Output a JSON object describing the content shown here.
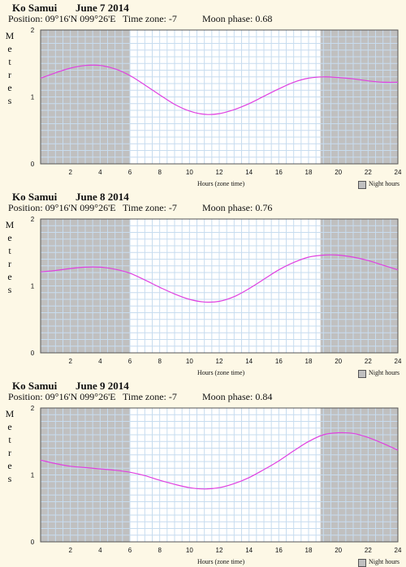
{
  "night_label": "Night hours",
  "x_title": "Hours (zone time)",
  "y_title_letters": [
    "M",
    "e",
    "t",
    "r",
    "e",
    "s"
  ],
  "colors": {
    "night": "#c0c0c0",
    "grid": "#c7dcef",
    "curve": "#e040e0",
    "plot_bg": "#ffffff",
    "page_bg": "#fdf8e6"
  },
  "chart_data": [
    {
      "type": "line",
      "place": "Ko Samui",
      "date": "June 7 2014",
      "position_label": "Position: 09°16'N 099°26'E",
      "timezone_label": "Time zone: -7",
      "moon_label": "Moon phase: 0.68",
      "xlabel": "Hours (zone time)",
      "ylabel": "Metres",
      "xlim": [
        0,
        24
      ],
      "ylim": [
        0,
        2
      ],
      "x_ticks": [
        2,
        4,
        6,
        8,
        10,
        12,
        14,
        16,
        18,
        20,
        22,
        24
      ],
      "y_ticks": [
        0,
        1,
        2
      ],
      "night_hours": [
        [
          0,
          6.0
        ],
        [
          18.8,
          24
        ]
      ],
      "series": [
        {
          "x": [
            0,
            1,
            2,
            3,
            4,
            5,
            6,
            7,
            8,
            9,
            10,
            11,
            12,
            13,
            14,
            15,
            16,
            17,
            18,
            19,
            20,
            21,
            22,
            23,
            24
          ],
          "values": [
            1.28,
            1.36,
            1.43,
            1.47,
            1.47,
            1.42,
            1.32,
            1.18,
            1.03,
            0.89,
            0.79,
            0.74,
            0.75,
            0.81,
            0.9,
            1.01,
            1.12,
            1.22,
            1.28,
            1.3,
            1.29,
            1.27,
            1.24,
            1.22,
            1.22
          ]
        }
      ]
    },
    {
      "type": "line",
      "place": "Ko Samui",
      "date": "June 8 2014",
      "position_label": "Position: 09°16'N 099°26'E",
      "timezone_label": "Time zone: -7",
      "moon_label": "Moon phase: 0.76",
      "xlabel": "Hours (zone time)",
      "ylabel": "Metres",
      "xlim": [
        0,
        24
      ],
      "ylim": [
        0,
        2
      ],
      "x_ticks": [
        2,
        4,
        6,
        8,
        10,
        12,
        14,
        16,
        18,
        20,
        22,
        24
      ],
      "y_ticks": [
        0,
        1,
        2
      ],
      "night_hours": [
        [
          0,
          6.0
        ],
        [
          18.8,
          24
        ]
      ],
      "series": [
        {
          "x": [
            0,
            1,
            2,
            3,
            4,
            5,
            6,
            7,
            8,
            9,
            10,
            11,
            12,
            13,
            14,
            15,
            16,
            17,
            18,
            19,
            20,
            21,
            22,
            23,
            24
          ],
          "values": [
            1.21,
            1.23,
            1.26,
            1.28,
            1.28,
            1.25,
            1.19,
            1.09,
            0.98,
            0.88,
            0.8,
            0.76,
            0.77,
            0.84,
            0.96,
            1.1,
            1.24,
            1.35,
            1.43,
            1.46,
            1.46,
            1.43,
            1.38,
            1.31,
            1.24
          ]
        }
      ]
    },
    {
      "type": "line",
      "place": "Ko Samui",
      "date": "June 9 2014",
      "position_label": "Position: 09°16'N 099°26'E",
      "timezone_label": "Time zone: -7",
      "moon_label": "Moon phase: 0.84",
      "xlabel": "Hours (zone time)",
      "ylabel": "Metres",
      "xlim": [
        0,
        24
      ],
      "ylim": [
        0,
        2
      ],
      "x_ticks": [
        2,
        4,
        6,
        8,
        10,
        12,
        14,
        16,
        18,
        20,
        22,
        24
      ],
      "y_ticks": [
        0,
        1,
        2
      ],
      "night_hours": [
        [
          0,
          6.0
        ],
        [
          18.8,
          24
        ]
      ],
      "series": [
        {
          "x": [
            0,
            1,
            2,
            3,
            4,
            5,
            6,
            7,
            8,
            9,
            10,
            11,
            12,
            13,
            14,
            15,
            16,
            17,
            18,
            19,
            20,
            21,
            22,
            23,
            24
          ],
          "values": [
            1.22,
            1.17,
            1.13,
            1.11,
            1.09,
            1.07,
            1.04,
            0.99,
            0.92,
            0.86,
            0.81,
            0.79,
            0.81,
            0.87,
            0.96,
            1.08,
            1.21,
            1.36,
            1.5,
            1.6,
            1.63,
            1.62,
            1.56,
            1.47,
            1.37
          ]
        }
      ]
    }
  ]
}
